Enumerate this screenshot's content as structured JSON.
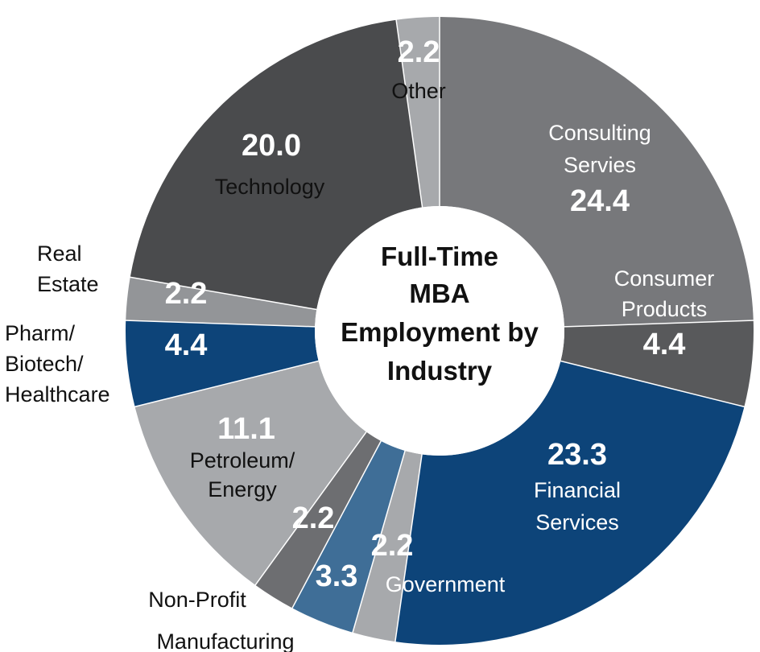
{
  "chart_data": {
    "type": "pie",
    "center_title": [
      "Full-Time",
      "MBA",
      "Employment by",
      "Industry"
    ],
    "slices": [
      {
        "label": [
          "Consulting",
          "Servies"
        ],
        "value": 24.4,
        "value_text": "24.4",
        "color": "#77787b"
      },
      {
        "label": [
          "Consumer",
          "Products"
        ],
        "value": 4.4,
        "value_text": "4.4",
        "color": "#58595b"
      },
      {
        "label": [
          "Financial",
          "Services"
        ],
        "value": 23.3,
        "value_text": "23.3",
        "color": "#0d4479"
      },
      {
        "label": [
          "Government"
        ],
        "value": 2.2,
        "value_text": "2.2",
        "color": "#a7a9ac"
      },
      {
        "label": [
          "Manufacturing"
        ],
        "value": 3.3,
        "value_text": "3.3",
        "color": "#3f6e97"
      },
      {
        "label": [
          "Non-Profit"
        ],
        "value": 2.2,
        "value_text": "2.2",
        "color": "#6d6e71"
      },
      {
        "label": [
          "Petroleum/",
          "Energy"
        ],
        "value": 11.1,
        "value_text": "11.1",
        "color": "#a7a9ac"
      },
      {
        "label": [
          "Pharm/",
          "Biotech/",
          "Healthcare"
        ],
        "value": 4.4,
        "value_text": "4.4",
        "color": "#0d4479"
      },
      {
        "label": [
          "Real",
          "Estate"
        ],
        "value": 2.2,
        "value_text": "2.2",
        "color": "#939598"
      },
      {
        "label": [
          "Technology"
        ],
        "value": 20.0,
        "value_text": "20.0",
        "color": "#4a4b4d"
      },
      {
        "label": [
          "Other"
        ],
        "value": 2.2,
        "value_text": "2.2",
        "color": "#a7a9ac"
      }
    ]
  }
}
